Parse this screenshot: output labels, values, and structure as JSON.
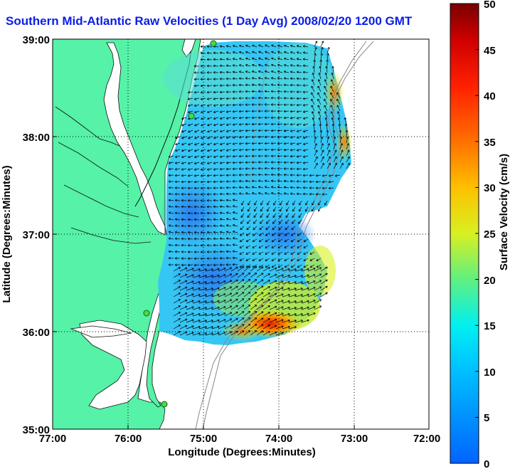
{
  "title": "Southern Mid-Atlantic Raw Velocities (1 Day Avg) 2008/02/20 1200 GMT",
  "map": {
    "xlabel": "Longitude (Degrees:Minutes)",
    "ylabel": "Latitude (Degrees:Minutes)",
    "x_ticks": [
      "77:00",
      "76:00",
      "75:00",
      "74:00",
      "73:00",
      "72:00"
    ],
    "y_ticks": [
      "39:00",
      "38:00",
      "37:00",
      "36:00",
      "35:00"
    ],
    "lon_range": [
      -77,
      -72
    ],
    "lat_range": [
      35,
      39
    ],
    "land_color": "#55f2a8",
    "grid": "dotted"
  },
  "colorbar": {
    "label": "Surface Velocity (cm/s)",
    "ticks": [
      "0",
      "5",
      "10",
      "15",
      "20",
      "25",
      "30",
      "35",
      "40",
      "45",
      "50"
    ],
    "range": [
      0,
      50
    ]
  },
  "icons": {
    "station": "green-circle-marker",
    "vector": "black-arrow"
  }
}
